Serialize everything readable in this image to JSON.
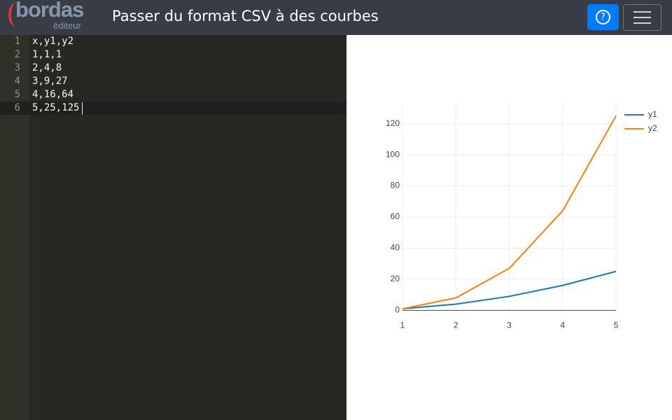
{
  "header": {
    "logo": "bordas",
    "logo_sub": "éditeur",
    "title": "Passer du format CSV à des courbes"
  },
  "editor": {
    "lines": [
      {
        "number": 1,
        "text": "x,y1,y2"
      },
      {
        "number": 2,
        "text": "1,1,1"
      },
      {
        "number": 3,
        "text": "2,4,8"
      },
      {
        "number": 4,
        "text": "3,9,27"
      },
      {
        "number": 5,
        "text": "4,16,64"
      },
      {
        "number": 6,
        "text": "5,25,125"
      }
    ]
  },
  "chart_data": {
    "type": "line",
    "x": [
      1,
      2,
      3,
      4,
      5
    ],
    "series": [
      {
        "name": "y1",
        "color": "#1f77b4",
        "values": [
          1,
          4,
          9,
          16,
          25
        ]
      },
      {
        "name": "y2",
        "color": "#ff7f0e",
        "values": [
          1,
          8,
          27,
          64,
          125
        ]
      }
    ],
    "xlim": [
      1,
      5
    ],
    "xticks": [
      1,
      2,
      3,
      4,
      5
    ],
    "ylim": [
      -3,
      132
    ],
    "yticks": [
      0,
      20,
      40,
      60,
      80,
      100,
      120
    ],
    "grid": true,
    "legend": "top-right"
  }
}
